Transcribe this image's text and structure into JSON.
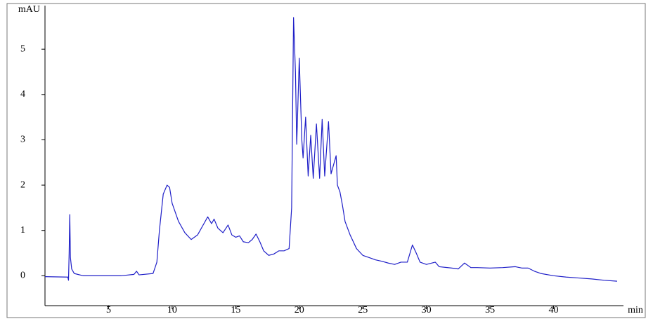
{
  "chart_data": {
    "type": "line",
    "ylabel": "mAU",
    "xlabel": "min",
    "color": "#1f1fc8",
    "xlim": [
      0,
      45.5
    ],
    "ylim": [
      -0.66,
      5.9
    ],
    "xticks": [
      5,
      10,
      15,
      20,
      25,
      30,
      35,
      40
    ],
    "yticks": [
      0,
      1,
      2,
      3,
      4,
      5
    ],
    "x": [
      0,
      1.8,
      1.85,
      1.9,
      1.95,
      2.0,
      2.1,
      2.3,
      3,
      5,
      6,
      7,
      7.2,
      7.4,
      8.5,
      8.8,
      9.0,
      9.3,
      9.6,
      9.8,
      10.0,
      10.5,
      11,
      11.5,
      12,
      12.5,
      12.8,
      13.1,
      13.3,
      13.6,
      14,
      14.4,
      14.7,
      15,
      15.3,
      15.6,
      16,
      16.3,
      16.6,
      16.9,
      17.2,
      17.6,
      18,
      18.4,
      18.8,
      19.2,
      19.4,
      19.55,
      19.7,
      19.8,
      20.0,
      20.2,
      20.3,
      20.5,
      20.7,
      20.9,
      21.1,
      21.35,
      21.6,
      21.8,
      22.0,
      22.3,
      22.5,
      22.9,
      23.0,
      23.2,
      23.4,
      23.6,
      24,
      24.5,
      25,
      25.5,
      26,
      26.5,
      27,
      27.5,
      28,
      28.5,
      28.9,
      29.2,
      29.5,
      30,
      30.7,
      31,
      32,
      32.5,
      33,
      33.5,
      34,
      35,
      36,
      37,
      37.5,
      38,
      38.5,
      39,
      40,
      41,
      42,
      43,
      44,
      45
    ],
    "values": [
      -0.02,
      -0.03,
      -0.1,
      0.5,
      1.35,
      0.4,
      0.15,
      0.05,
      0,
      0,
      0,
      0.03,
      0.1,
      0.02,
      0.05,
      0.3,
      1.0,
      1.8,
      2.0,
      1.95,
      1.6,
      1.2,
      0.95,
      0.8,
      0.9,
      1.15,
      1.3,
      1.15,
      1.25,
      1.05,
      0.95,
      1.12,
      0.9,
      0.85,
      0.88,
      0.75,
      0.73,
      0.8,
      0.92,
      0.75,
      0.55,
      0.45,
      0.48,
      0.55,
      0.55,
      0.6,
      1.5,
      5.7,
      4.5,
      2.9,
      4.8,
      3.0,
      2.6,
      3.5,
      2.2,
      3.1,
      2.15,
      3.35,
      2.15,
      3.45,
      2.2,
      3.4,
      2.25,
      2.65,
      2.0,
      1.85,
      1.55,
      1.2,
      0.9,
      0.6,
      0.45,
      0.4,
      0.35,
      0.32,
      0.28,
      0.25,
      0.3,
      0.3,
      0.68,
      0.5,
      0.3,
      0.25,
      0.3,
      0.2,
      0.17,
      0.15,
      0.28,
      0.18,
      0.18,
      0.17,
      0.18,
      0.2,
      0.17,
      0.17,
      0.1,
      0.05,
      0.0,
      -0.03,
      -0.05,
      -0.07,
      -0.1,
      -0.12
    ]
  }
}
